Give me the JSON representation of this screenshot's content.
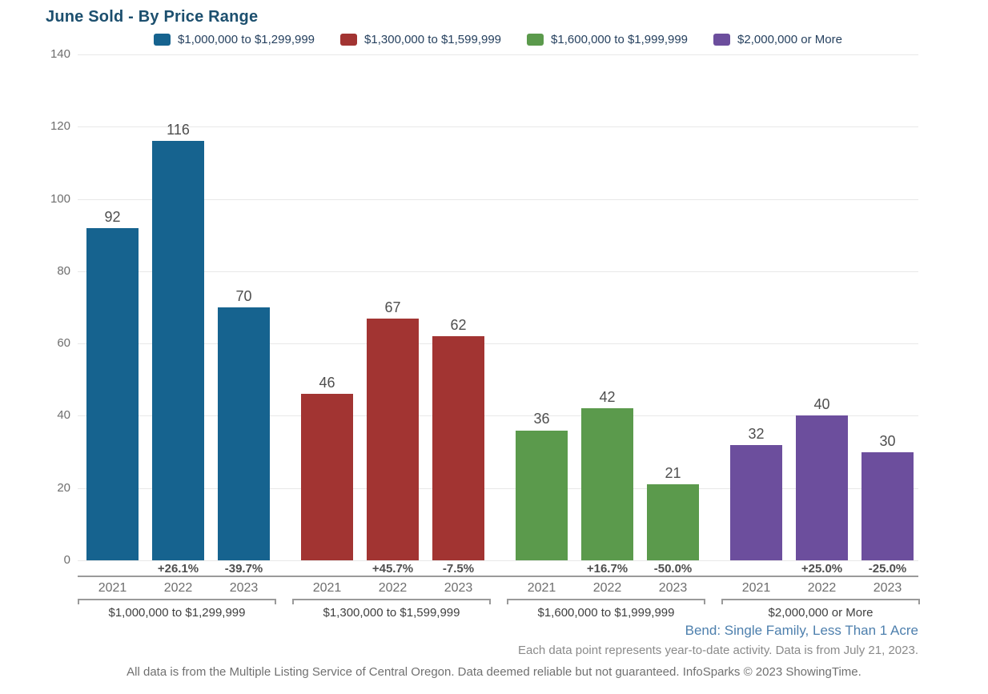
{
  "title": "June Sold - By Price Range",
  "chart_data": {
    "type": "bar",
    "title": "June Sold - By Price Range",
    "categories": [
      "2021",
      "2022",
      "2023"
    ],
    "groups": [
      {
        "label": "$1,000,000 to $1,299,999",
        "color": "#16638F",
        "values": [
          92,
          116,
          70
        ],
        "pct_changes": [
          "",
          "+26.1%",
          "-39.7%"
        ]
      },
      {
        "label": "$1,300,000 to $1,599,999",
        "color": "#A23432",
        "values": [
          46,
          67,
          62
        ],
        "pct_changes": [
          "",
          "+45.7%",
          "-7.5%"
        ]
      },
      {
        "label": "$1,600,000 to $1,999,999",
        "color": "#5B9A4C",
        "values": [
          36,
          42,
          21
        ],
        "pct_changes": [
          "",
          "+16.7%",
          "-50.0%"
        ]
      },
      {
        "label": "$2,000,000 or More",
        "color": "#6C4E9D",
        "values": [
          32,
          40,
          30
        ],
        "pct_changes": [
          "",
          "+25.0%",
          "-25.0%"
        ]
      }
    ],
    "ylim": [
      0,
      140
    ],
    "ytick_step": 20,
    "grid": true,
    "legend_position": "top"
  },
  "footer": {
    "market_label": "Bend: Single Family, Less Than 1 Acre",
    "note": "Each data point represents year-to-date activity. Data is from July 21, 2023.",
    "disclaimer": "All data is from the Multiple Listing Service of Central Oregon. Data deemed reliable but not guaranteed. InfoSparks © 2023 ShowingTime."
  },
  "colors": {
    "title_text": "#1C4F6E",
    "legend_text": "#26415F",
    "market_label_text": "#4D7FAD",
    "gridline": "#E8E8E8",
    "axis_line": "#9A9A9A",
    "value_label_text": "#4E4E4E",
    "series": [
      "#16638F",
      "#A23432",
      "#5B9A4C",
      "#6C4E9D"
    ]
  }
}
